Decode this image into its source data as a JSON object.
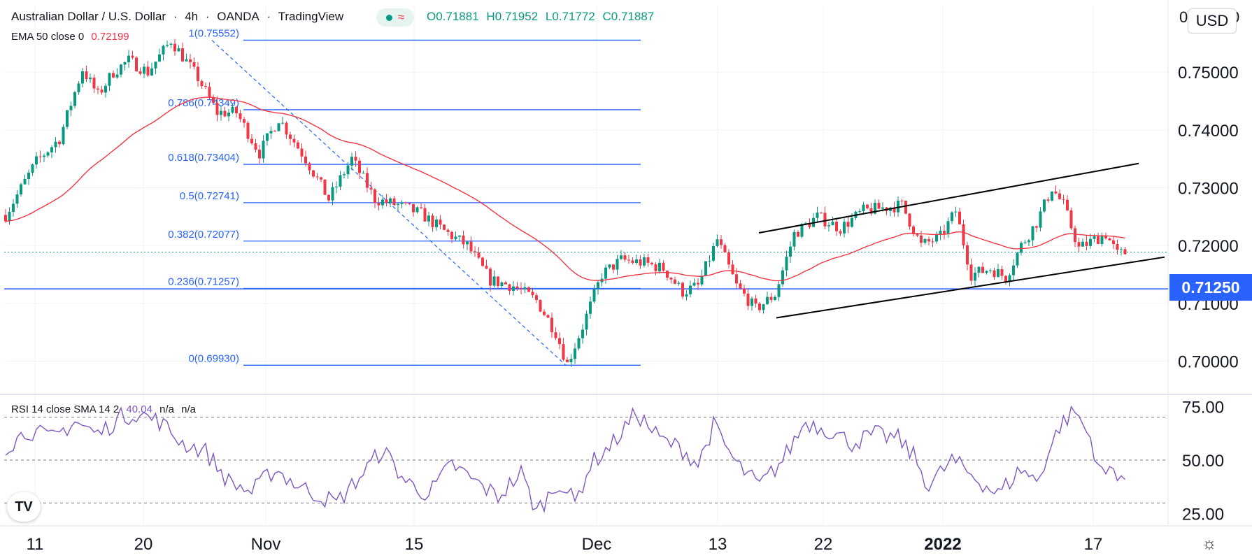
{
  "header": {
    "symbol": "Australian Dollar / U.S. Dollar",
    "interval": "4h",
    "exchange": "OANDA",
    "source": "TradingView",
    "open": "O0.71881",
    "high": "H0.71952",
    "low": "L0.71772",
    "close": "C0.71887",
    "ema_label": "EMA 50 close 0",
    "ema_value": "0.72199",
    "rsi_label": "RSI 14 close SMA 14 2",
    "rsi_value": "40.04",
    "rsi_na1": "n/a",
    "rsi_na2": "n/a",
    "wave_symbol": "≈"
  },
  "currency_button": "USD",
  "price_tag": "0.71250",
  "top_axis_fragments": [
    "0",
    "0"
  ],
  "colors": {
    "up": "#089981",
    "down": "#f23645",
    "ema": "#f23645",
    "fib": "#2962ff",
    "rsi": "#7e57c2",
    "channel": "#000000",
    "accent": "#2962ff"
  },
  "chart_data": [
    {
      "type": "candlestick",
      "title": "Australian Dollar / U.S. Dollar, 4h, OANDA",
      "x_tick_labels": [
        "11",
        "20",
        "Nov",
        "15",
        "Dec",
        "13",
        "22",
        "2022",
        "17"
      ],
      "y_tick_labels": [
        "0.75000",
        "0.74000",
        "0.73000",
        "0.72000",
        "0.71000",
        "0.70000"
      ],
      "ylim": [
        0.6945,
        0.7615
      ],
      "trend_points": [
        [
          0,
          0.7253
        ],
        [
          8,
          0.7345
        ],
        [
          14,
          0.7385
        ],
        [
          20,
          0.7505
        ],
        [
          24,
          0.746
        ],
        [
          28,
          0.75
        ],
        [
          32,
          0.752
        ],
        [
          37,
          0.75
        ],
        [
          43,
          0.7555
        ],
        [
          50,
          0.749
        ],
        [
          55,
          0.743
        ],
        [
          60,
          0.743
        ],
        [
          66,
          0.736
        ],
        [
          71,
          0.742
        ],
        [
          78,
          0.735
        ],
        [
          84,
          0.728
        ],
        [
          90,
          0.735
        ],
        [
          96,
          0.728
        ],
        [
          102,
          0.727
        ],
        [
          108,
          0.7255
        ],
        [
          114,
          0.7225
        ],
        [
          120,
          0.72
        ],
        [
          126,
          0.714
        ],
        [
          132,
          0.713
        ],
        [
          138,
          0.7105
        ],
        [
          143,
          0.705
        ],
        [
          146,
          0.6995
        ],
        [
          150,
          0.706
        ],
        [
          155,
          0.715
        ],
        [
          160,
          0.7175
        ],
        [
          166,
          0.717
        ],
        [
          171,
          0.716
        ],
        [
          176,
          0.712
        ],
        [
          180,
          0.713
        ],
        [
          185,
          0.721
        ],
        [
          190,
          0.713
        ],
        [
          195,
          0.709
        ],
        [
          200,
          0.7115
        ],
        [
          205,
          0.722
        ],
        [
          211,
          0.725
        ],
        [
          217,
          0.723
        ],
        [
          223,
          0.726
        ],
        [
          228,
          0.7265
        ],
        [
          233,
          0.727
        ],
        [
          238,
          0.72
        ],
        [
          243,
          0.7215
        ],
        [
          247,
          0.726
        ],
        [
          251,
          0.715
        ],
        [
          256,
          0.716
        ],
        [
          260,
          0.7145
        ],
        [
          264,
          0.72
        ],
        [
          268,
          0.724
        ],
        [
          272,
          0.73
        ],
        [
          275,
          0.727
        ],
        [
          279,
          0.7195
        ],
        [
          283,
          0.721
        ],
        [
          286,
          0.722
        ],
        [
          289,
          0.7185
        ],
        [
          292,
          0.7189
        ]
      ],
      "current_price_line": 0.71887,
      "horizontal_level": 0.7125,
      "fibonacci": [
        {
          "label": "1(0.75552)",
          "value": 0.75552
        },
        {
          "label": "0.786(0.74349)",
          "value": 0.74349
        },
        {
          "label": "0.618(0.73404)",
          "value": 0.73404
        },
        {
          "label": "0.5(0.72741)",
          "value": 0.72741
        },
        {
          "label": "0.382(0.72077)",
          "value": 0.72077
        },
        {
          "label": "0.236(0.71257)",
          "value": 0.71257
        },
        {
          "label": "0(0.69930)",
          "value": 0.6993
        }
      ],
      "ema": {
        "name": "EMA 50 close 0",
        "last": 0.72199
      }
    },
    {
      "type": "line",
      "title": "RSI 14 close SMA 14 2",
      "y_tick_labels": [
        "75.00",
        "50.00",
        "25.00"
      ],
      "ylim": [
        20,
        80
      ],
      "guide_levels": [
        70,
        50,
        30
      ],
      "trend_points": [
        [
          0,
          56
        ],
        [
          6,
          64
        ],
        [
          12,
          60
        ],
        [
          18,
          68
        ],
        [
          24,
          62
        ],
        [
          30,
          70
        ],
        [
          34,
          72
        ],
        [
          40,
          68
        ],
        [
          46,
          58
        ],
        [
          52,
          54
        ],
        [
          58,
          40
        ],
        [
          64,
          35
        ],
        [
          70,
          46
        ],
        [
          76,
          38
        ],
        [
          82,
          33
        ],
        [
          86,
          30
        ],
        [
          92,
          42
        ],
        [
          98,
          55
        ],
        [
          104,
          40
        ],
        [
          110,
          34
        ],
        [
          116,
          48
        ],
        [
          122,
          40
        ],
        [
          128,
          33
        ],
        [
          134,
          44
        ],
        [
          138,
          26
        ],
        [
          144,
          40
        ],
        [
          148,
          30
        ],
        [
          152,
          48
        ],
        [
          158,
          58
        ],
        [
          164,
          72
        ],
        [
          170,
          60
        ],
        [
          176,
          55
        ],
        [
          180,
          48
        ],
        [
          184,
          66
        ],
        [
          190,
          48
        ],
        [
          196,
          38
        ],
        [
          202,
          50
        ],
        [
          208,
          68
        ],
        [
          214,
          64
        ],
        [
          220,
          58
        ],
        [
          226,
          62
        ],
        [
          232,
          60
        ],
        [
          236,
          52
        ],
        [
          240,
          38
        ],
        [
          246,
          50
        ],
        [
          252,
          42
        ],
        [
          258,
          34
        ],
        [
          264,
          46
        ],
        [
          268,
          40
        ],
        [
          274,
          66
        ],
        [
          278,
          73
        ],
        [
          282,
          60
        ],
        [
          285,
          43
        ],
        [
          288,
          46
        ],
        [
          292,
          40
        ]
      ]
    }
  ]
}
